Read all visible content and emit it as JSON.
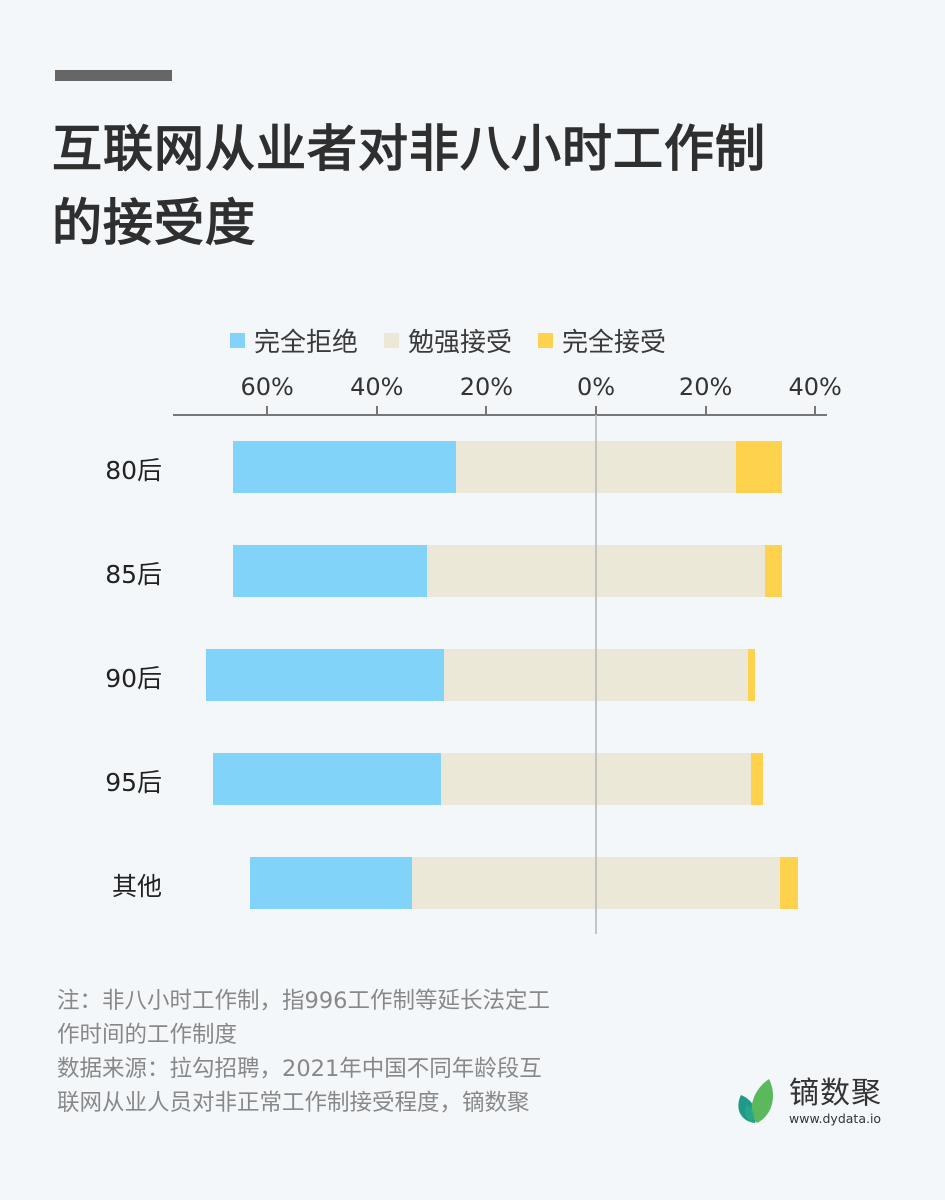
{
  "header": {
    "title_line1": "互联网从业者对非八小时工作制",
    "title_line2": "的接受度"
  },
  "colors": {
    "reject": "#81d3fa",
    "reluctant": "#ece8d8",
    "accept": "#ffd24d",
    "background": "#f3f7fa"
  },
  "legend": [
    {
      "label": "完全拒绝",
      "color": "#81d3fa"
    },
    {
      "label": "勉强接受",
      "color": "#ece8d8"
    },
    {
      "label": "完全接受",
      "color": "#ffd24d"
    }
  ],
  "axis": {
    "ticks": [
      {
        "label": "60%",
        "value": -60
      },
      {
        "label": "40%",
        "value": -40
      },
      {
        "label": "20%",
        "value": -20
      },
      {
        "label": "0%",
        "value": 0
      },
      {
        "label": "20%",
        "value": 20
      },
      {
        "label": "40%",
        "value": 40
      }
    ]
  },
  "chart_data": {
    "type": "bar",
    "subtype": "diverging-stacked-horizontal",
    "title": "互联网从业者对非八小时工作制的接受度",
    "categories": [
      "80后",
      "85后",
      "90后",
      "95后",
      "其他"
    ],
    "series": [
      {
        "name": "完全拒绝",
        "values": [
          40.6,
          35.4,
          43.4,
          41.5,
          29.6
        ]
      },
      {
        "name": "勉强接受",
        "values": [
          51.2,
          61.6,
          55.5,
          56.6,
          67.2
        ]
      },
      {
        "name": "完全接受",
        "values": [
          8.3,
          3.1,
          1.2,
          2.1,
          3.3
        ]
      }
    ],
    "xlabel": "",
    "ylabel": "",
    "xlim": [
      -77,
      42
    ],
    "x_tick_labels": [
      "60%",
      "40%",
      "20%",
      "0%",
      "20%",
      "40%"
    ],
    "center_line": 0,
    "legend_position": "top",
    "grid": false,
    "note": "勉强接受 is centered on the 0% line; 完全拒绝 extends left, 完全接受 extends right"
  },
  "footnote": {
    "line1": "注：非八小时工作制，指996工作制等延长法定工",
    "line2": "作时间的工作制度",
    "line3": "数据来源：拉勾招聘，2021年中国不同年龄段互",
    "line4": "联网从业人员对非正常工作制接受程度，镝数聚"
  },
  "logo": {
    "name": "镝数聚",
    "url": "www.dydata.io"
  }
}
